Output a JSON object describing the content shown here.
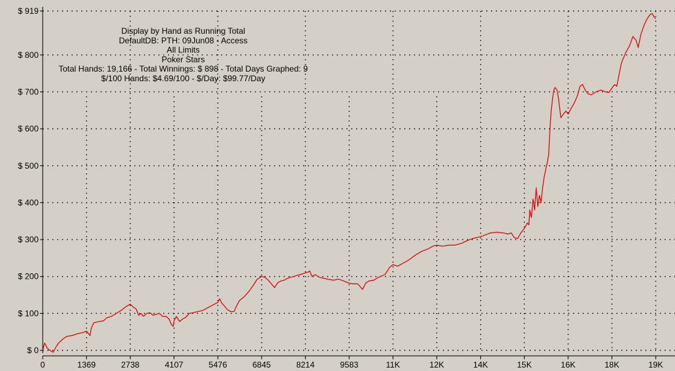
{
  "chart_data": {
    "type": "line",
    "title_lines": [
      "Display by Hand as Running Total",
      "DefaultDB: PTH: 09Jun08 - Access",
      "All Limits",
      "Poker Stars",
      "Total Hands: 19,166 - Total Winnings: $ 898 - Total Days Graphed: 9",
      "$/100 Hands: $4.69/100 - $/Day: $99.77/Day"
    ],
    "xlabel": "",
    "ylabel": "",
    "xlim": [
      0,
      19166
    ],
    "ylim": [
      0,
      919
    ],
    "x_ticks": [
      0,
      1369,
      2738,
      4107,
      5476,
      6845,
      8214,
      9583,
      10952,
      12321,
      13690,
      15059,
      16428,
      17797,
      19166
    ],
    "x_tick_labels": [
      "0",
      "1369",
      "2738",
      "4107",
      "5476",
      "6845",
      "8214",
      "9583",
      "11K",
      "12K",
      "14K",
      "15K",
      "16K",
      "18K",
      "19K"
    ],
    "y_ticks": [
      0,
      100,
      200,
      300,
      400,
      500,
      600,
      700,
      800,
      919
    ],
    "y_tick_labels": [
      "$ 0",
      "$ 100",
      "$ 200",
      "$ 300",
      "$ 400",
      "$ 500",
      "$ 600",
      "$ 700",
      "$ 800",
      "$ 919"
    ],
    "grid": true,
    "line_color": "#e00000",
    "background_color": "#d4d0c8",
    "series": [
      {
        "points": [
          [
            0,
            0
          ],
          [
            60,
            20
          ],
          [
            150,
            5
          ],
          [
            260,
            -2
          ],
          [
            330,
            -5
          ],
          [
            420,
            10
          ],
          [
            500,
            20
          ],
          [
            620,
            30
          ],
          [
            760,
            38
          ],
          [
            920,
            40
          ],
          [
            1080,
            45
          ],
          [
            1250,
            48
          ],
          [
            1369,
            52
          ],
          [
            1480,
            40
          ],
          [
            1520,
            60
          ],
          [
            1600,
            75
          ],
          [
            1760,
            78
          ],
          [
            1900,
            80
          ],
          [
            2000,
            88
          ],
          [
            2150,
            92
          ],
          [
            2300,
            100
          ],
          [
            2450,
            108
          ],
          [
            2600,
            118
          ],
          [
            2738,
            125
          ],
          [
            2820,
            118
          ],
          [
            2920,
            112
          ],
          [
            3000,
            95
          ],
          [
            3080,
            100
          ],
          [
            3150,
            92
          ],
          [
            3250,
            100
          ],
          [
            3350,
            102
          ],
          [
            3450,
            95
          ],
          [
            3550,
            98
          ],
          [
            3650,
            100
          ],
          [
            3750,
            92
          ],
          [
            3850,
            92
          ],
          [
            3950,
            85
          ],
          [
            4020,
            70
          ],
          [
            4080,
            65
          ],
          [
            4107,
            80
          ],
          [
            4180,
            92
          ],
          [
            4280,
            78
          ],
          [
            4380,
            85
          ],
          [
            4480,
            90
          ],
          [
            4580,
            100
          ],
          [
            4700,
            102
          ],
          [
            4850,
            105
          ],
          [
            5000,
            108
          ],
          [
            5150,
            115
          ],
          [
            5300,
            122
          ],
          [
            5476,
            130
          ],
          [
            5530,
            140
          ],
          [
            5600,
            128
          ],
          [
            5680,
            120
          ],
          [
            5780,
            110
          ],
          [
            5880,
            105
          ],
          [
            5980,
            105
          ],
          [
            6050,
            118
          ],
          [
            6150,
            135
          ],
          [
            6300,
            145
          ],
          [
            6450,
            160
          ],
          [
            6600,
            178
          ],
          [
            6700,
            192
          ],
          [
            6845,
            200
          ],
          [
            6950,
            198
          ],
          [
            7050,
            190
          ],
          [
            7150,
            180
          ],
          [
            7250,
            170
          ],
          [
            7350,
            183
          ],
          [
            7450,
            188
          ],
          [
            7550,
            190
          ],
          [
            7650,
            195
          ],
          [
            7750,
            198
          ],
          [
            7850,
            200
          ],
          [
            7950,
            203
          ],
          [
            8050,
            205
          ],
          [
            8150,
            208
          ],
          [
            8214,
            210
          ],
          [
            8300,
            212
          ],
          [
            8350,
            215
          ],
          [
            8420,
            200
          ],
          [
            8520,
            205
          ],
          [
            8650,
            198
          ],
          [
            8800,
            195
          ],
          [
            8950,
            192
          ],
          [
            9100,
            190
          ],
          [
            9250,
            193
          ],
          [
            9400,
            188
          ],
          [
            9583,
            182
          ],
          [
            9700,
            180
          ],
          [
            9850,
            180
          ],
          [
            10000,
            165
          ],
          [
            10100,
            182
          ],
          [
            10200,
            188
          ],
          [
            10350,
            190
          ],
          [
            10500,
            198
          ],
          [
            10700,
            205
          ],
          [
            10850,
            225
          ],
          [
            10952,
            232
          ],
          [
            11100,
            228
          ],
          [
            11250,
            235
          ],
          [
            11450,
            245
          ],
          [
            11650,
            258
          ],
          [
            11850,
            268
          ],
          [
            12050,
            275
          ],
          [
            12200,
            282
          ],
          [
            12321,
            285
          ],
          [
            12500,
            282
          ],
          [
            12700,
            285
          ],
          [
            12900,
            285
          ],
          [
            13100,
            290
          ],
          [
            13300,
            298
          ],
          [
            13450,
            303
          ],
          [
            13690,
            308
          ],
          [
            13850,
            313
          ],
          [
            14000,
            318
          ],
          [
            14200,
            320
          ],
          [
            14400,
            318
          ],
          [
            14550,
            315
          ],
          [
            14650,
            318
          ],
          [
            14750,
            305
          ],
          [
            14850,
            303
          ],
          [
            14950,
            318
          ],
          [
            15059,
            330
          ],
          [
            15150,
            345
          ],
          [
            15200,
            340
          ],
          [
            15230,
            380
          ],
          [
            15280,
            360
          ],
          [
            15330,
            410
          ],
          [
            15380,
            380
          ],
          [
            15430,
            440
          ],
          [
            15480,
            390
          ],
          [
            15530,
            420
          ],
          [
            15580,
            400
          ],
          [
            15630,
            440
          ],
          [
            15680,
            470
          ],
          [
            15730,
            490
          ],
          [
            15780,
            510
          ],
          [
            15820,
            530
          ],
          [
            15860,
            600
          ],
          [
            15900,
            650
          ],
          [
            15940,
            680
          ],
          [
            15980,
            705
          ],
          [
            16020,
            712
          ],
          [
            16080,
            705
          ],
          [
            16130,
            680
          ],
          [
            16200,
            630
          ],
          [
            16280,
            640
          ],
          [
            16360,
            648
          ],
          [
            16428,
            640
          ],
          [
            16520,
            655
          ],
          [
            16620,
            670
          ],
          [
            16720,
            690
          ],
          [
            16800,
            715
          ],
          [
            16880,
            720
          ],
          [
            16960,
            705
          ],
          [
            17050,
            695
          ],
          [
            17150,
            692
          ],
          [
            17300,
            700
          ],
          [
            17450,
            705
          ],
          [
            17600,
            700
          ],
          [
            17700,
            698
          ],
          [
            17797,
            710
          ],
          [
            17880,
            720
          ],
          [
            17950,
            715
          ],
          [
            18050,
            760
          ],
          [
            18100,
            780
          ],
          [
            18150,
            790
          ],
          [
            18250,
            810
          ],
          [
            18350,
            825
          ],
          [
            18450,
            850
          ],
          [
            18550,
            840
          ],
          [
            18620,
            820
          ],
          [
            18700,
            855
          ],
          [
            18800,
            880
          ],
          [
            18880,
            895
          ],
          [
            18950,
            905
          ],
          [
            19000,
            910
          ],
          [
            19060,
            912
          ],
          [
            19100,
            905
          ],
          [
            19166,
            898
          ]
        ]
      }
    ]
  }
}
